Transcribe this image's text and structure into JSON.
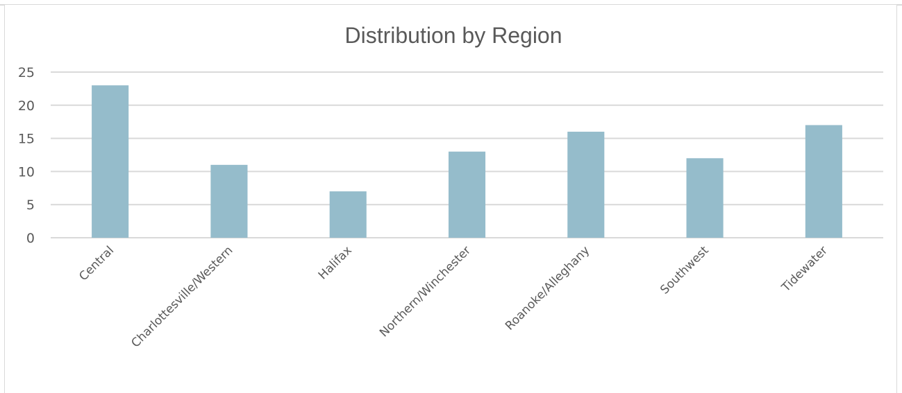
{
  "chart_data": {
    "type": "bar",
    "title": "Distribution by Region",
    "xlabel": "",
    "ylabel": "",
    "categories": [
      "Central",
      "Charlottesville/Western",
      "Halifax",
      "Northern/Winchester",
      "Roanoke/Alleghany",
      "Southwest",
      "Tidewater"
    ],
    "values": [
      23,
      11,
      7,
      13,
      16,
      12,
      17
    ],
    "ylim": [
      0,
      25
    ],
    "yticks": [
      "0",
      "5",
      "10",
      "15",
      "20",
      "25"
    ],
    "grid": true,
    "legend": "none",
    "colors": {
      "bar": "#95bccb",
      "grid": "#d9d9d9",
      "text": "#595959"
    }
  }
}
